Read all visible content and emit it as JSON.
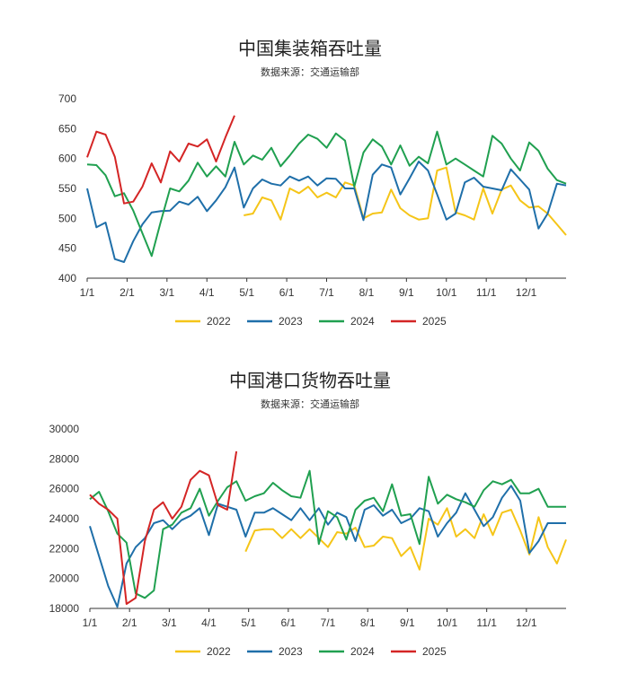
{
  "charts": [
    {
      "title": "中国集装箱吞吐量",
      "subtitle": "数据来源：交通运输部"
    },
    {
      "title": "中国港口货物吞吐量",
      "subtitle": "数据来源：交通运输部"
    }
  ],
  "chart_data": [
    {
      "type": "line",
      "title": "中国集装箱吞吐量",
      "subtitle": "数据来源：交通运输部",
      "xlabel": "",
      "ylabel": "",
      "x_tick_labels": [
        "1/1",
        "2/1",
        "3/1",
        "4/1",
        "5/1",
        "6/1",
        "7/1",
        "8/1",
        "9/1",
        "10/1",
        "11/1",
        "12/1"
      ],
      "y_ticks": [
        400,
        450,
        500,
        550,
        600,
        650,
        700
      ],
      "ylim": [
        400,
        700
      ],
      "x_unit": "week",
      "x_range": [
        1,
        53
      ],
      "grid": false,
      "legend_position": "bottom",
      "series": [
        {
          "name": "2022",
          "color": "#F5C518",
          "x": [
            18,
            19,
            20,
            21,
            22,
            23,
            24,
            25,
            26,
            27,
            28,
            29,
            30,
            31,
            32,
            33,
            34,
            35,
            36,
            37,
            38,
            39,
            40,
            41,
            42,
            43,
            44,
            45,
            46,
            47,
            48,
            49,
            50,
            51,
            52,
            53
          ],
          "values": [
            505,
            508,
            535,
            530,
            498,
            550,
            542,
            553,
            535,
            543,
            535,
            560,
            555,
            500,
            508,
            510,
            548,
            517,
            505,
            498,
            500,
            580,
            585,
            510,
            505,
            498,
            550,
            508,
            548,
            555,
            530,
            518,
            520,
            508,
            490,
            472
          ]
        },
        {
          "name": "2023",
          "color": "#1F6FA9",
          "x": [
            1,
            2,
            3,
            4,
            5,
            6,
            7,
            8,
            9,
            10,
            11,
            12,
            13,
            14,
            15,
            16,
            17,
            18,
            19,
            20,
            21,
            22,
            23,
            24,
            25,
            26,
            27,
            28,
            29,
            30,
            31,
            32,
            33,
            34,
            35,
            36,
            37,
            38,
            39,
            40,
            41,
            42,
            43,
            44,
            45,
            46,
            47,
            48,
            49,
            50,
            51,
            52,
            53
          ],
          "values": [
            550,
            485,
            493,
            432,
            427,
            462,
            490,
            510,
            512,
            513,
            528,
            523,
            536,
            512,
            530,
            552,
            585,
            518,
            550,
            565,
            558,
            555,
            570,
            563,
            570,
            555,
            567,
            566,
            550,
            550,
            497,
            573,
            590,
            585,
            540,
            567,
            595,
            580,
            540,
            498,
            508,
            560,
            568,
            553,
            550,
            547,
            582,
            565,
            548,
            483,
            508,
            558,
            555
          ]
        },
        {
          "name": "2024",
          "color": "#20A050",
          "x": [
            1,
            2,
            3,
            4,
            5,
            6,
            7,
            8,
            9,
            10,
            11,
            12,
            13,
            14,
            15,
            16,
            17,
            18,
            19,
            20,
            21,
            22,
            23,
            24,
            25,
            26,
            27,
            28,
            29,
            30,
            31,
            32,
            33,
            34,
            35,
            36,
            37,
            38,
            39,
            40,
            41,
            42,
            43,
            44,
            45,
            46,
            47,
            48,
            49,
            50,
            51,
            52,
            53
          ],
          "values": [
            590,
            589,
            572,
            537,
            542,
            513,
            475,
            437,
            495,
            550,
            545,
            563,
            593,
            570,
            587,
            570,
            628,
            590,
            605,
            598,
            618,
            587,
            605,
            625,
            640,
            633,
            618,
            642,
            630,
            553,
            610,
            632,
            620,
            590,
            622,
            588,
            603,
            592,
            645,
            590,
            600,
            590,
            580,
            570,
            638,
            625,
            600,
            580,
            627,
            613,
            583,
            564,
            558
          ]
        },
        {
          "name": "2025",
          "color": "#D42525",
          "x": [
            1,
            2,
            3,
            4,
            5,
            6,
            7,
            8,
            9,
            10,
            11,
            12,
            13,
            14,
            15,
            16,
            17
          ],
          "values": [
            602,
            645,
            640,
            603,
            525,
            528,
            553,
            592,
            560,
            612,
            595,
            625,
            620,
            632,
            595,
            635,
            672
          ]
        }
      ]
    },
    {
      "type": "line",
      "title": "中国港口货物吞吐量",
      "subtitle": "数据来源：交通运输部",
      "xlabel": "",
      "ylabel": "",
      "x_tick_labels": [
        "1/1",
        "2/1",
        "3/1",
        "4/1",
        "5/1",
        "6/1",
        "7/1",
        "8/1",
        "9/1",
        "10/1",
        "11/1",
        "12/1"
      ],
      "y_ticks": [
        18000,
        20000,
        22000,
        24000,
        26000,
        28000,
        30000
      ],
      "ylim": [
        18000,
        30000
      ],
      "x_unit": "week",
      "x_range": [
        1,
        53
      ],
      "grid": false,
      "legend_position": "bottom",
      "series": [
        {
          "name": "2022",
          "color": "#F5C518",
          "x": [
            18,
            19,
            20,
            21,
            22,
            23,
            24,
            25,
            26,
            27,
            28,
            29,
            30,
            31,
            32,
            33,
            34,
            35,
            36,
            37,
            38,
            39,
            40,
            41,
            42,
            43,
            44,
            45,
            46,
            47,
            48,
            49,
            50,
            51,
            52,
            53
          ],
          "values": [
            21800,
            23200,
            23300,
            23300,
            22700,
            23300,
            22700,
            23300,
            22700,
            22100,
            23100,
            23000,
            23400,
            22100,
            22200,
            22800,
            22700,
            21500,
            22100,
            20600,
            24000,
            23600,
            24700,
            22800,
            23300,
            22700,
            24300,
            22900,
            24400,
            24600,
            23200,
            21600,
            24100,
            22100,
            21000,
            22600
          ]
        },
        {
          "name": "2023",
          "color": "#1F6FA9",
          "x": [
            1,
            2,
            3,
            4,
            5,
            6,
            7,
            8,
            9,
            10,
            11,
            12,
            13,
            14,
            15,
            16,
            17,
            18,
            19,
            20,
            21,
            22,
            23,
            24,
            25,
            26,
            27,
            28,
            29,
            30,
            31,
            32,
            33,
            34,
            35,
            36,
            37,
            38,
            39,
            40,
            41,
            42,
            43,
            44,
            45,
            46,
            47,
            48,
            49,
            50,
            51,
            52,
            53
          ],
          "values": [
            23500,
            21500,
            19500,
            18100,
            21000,
            22100,
            22700,
            23700,
            23900,
            23300,
            23900,
            24200,
            24700,
            22900,
            25000,
            24800,
            24600,
            22800,
            24400,
            24400,
            24700,
            24300,
            23900,
            24700,
            23900,
            24700,
            23600,
            24400,
            24100,
            22500,
            24600,
            24900,
            24200,
            24600,
            23700,
            24000,
            24700,
            24500,
            22800,
            23700,
            24400,
            25700,
            24600,
            23500,
            24100,
            25400,
            26200,
            25200,
            21700,
            22500,
            23700,
            23700,
            23700
          ]
        },
        {
          "name": "2024",
          "color": "#20A050",
          "x": [
            1,
            2,
            3,
            4,
            5,
            6,
            7,
            8,
            9,
            10,
            11,
            12,
            13,
            14,
            15,
            16,
            17,
            18,
            19,
            20,
            21,
            22,
            23,
            24,
            25,
            26,
            27,
            28,
            29,
            30,
            31,
            32,
            33,
            34,
            35,
            36,
            37,
            38,
            39,
            40,
            41,
            42,
            43,
            44,
            45,
            46,
            47,
            48,
            49,
            50,
            51,
            52,
            53
          ],
          "values": [
            25300,
            25800,
            24500,
            23000,
            22400,
            19000,
            18700,
            19200,
            23300,
            23600,
            24400,
            24700,
            26000,
            24200,
            25200,
            26100,
            26500,
            25200,
            25500,
            25700,
            26400,
            25900,
            25500,
            25400,
            27200,
            22300,
            24500,
            24100,
            22600,
            24600,
            25200,
            25400,
            24500,
            26300,
            24200,
            24300,
            22300,
            26800,
            25000,
            25600,
            25300,
            25100,
            24800,
            25900,
            26500,
            26300,
            26600,
            25700,
            25700,
            26000,
            24800,
            24800,
            24800
          ]
        },
        {
          "name": "2025",
          "color": "#D42525",
          "x": [
            1,
            2,
            3,
            4,
            5,
            6,
            7,
            8,
            9,
            10,
            11,
            12,
            13,
            14,
            15,
            16,
            17
          ],
          "values": [
            25600,
            25000,
            24600,
            24000,
            18300,
            18700,
            22500,
            24600,
            25100,
            24000,
            24800,
            26600,
            27200,
            26900,
            24900,
            24600,
            28500
          ]
        }
      ]
    }
  ]
}
